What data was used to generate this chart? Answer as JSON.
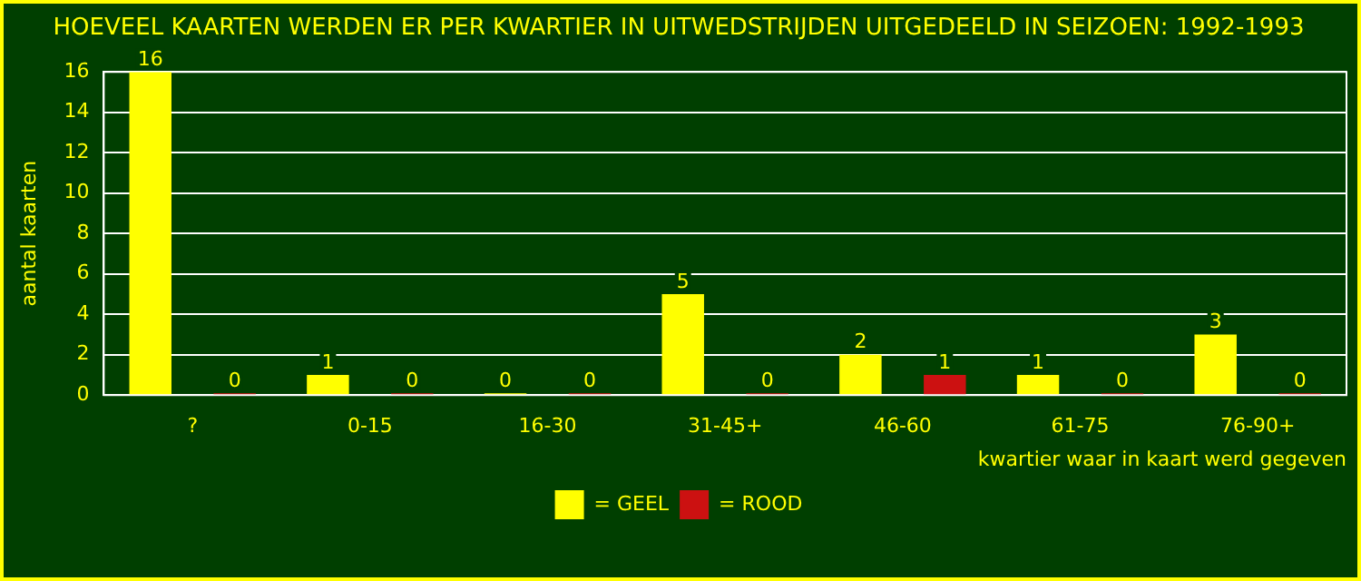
{
  "chart_data": {
    "type": "bar",
    "title": "HOEVEEL KAARTEN WERDEN ER PER KWARTIER IN UITWEDSTRIJDEN UITGEDEELD IN SEIZOEN: 1992-1993",
    "xlabel": "kwartier waar in kaart werd gegeven",
    "ylabel": "aantal kaarten",
    "categories": [
      "?",
      "0-15",
      "16-30",
      "31-45+",
      "46-60",
      "61-75",
      "76-90+"
    ],
    "series": [
      {
        "name": "= GEEL",
        "color": "#ffff00",
        "values": [
          16,
          1,
          0,
          5,
          2,
          1,
          3
        ]
      },
      {
        "name": "= ROOD",
        "color": "#cc1111",
        "values": [
          0,
          0,
          0,
          0,
          1,
          0,
          0
        ]
      }
    ],
    "ylim": [
      0,
      16
    ],
    "yticks": [
      0,
      2,
      4,
      6,
      8,
      10,
      12,
      14,
      16
    ],
    "grid": "y",
    "legend": "bottom",
    "data_labels": true
  }
}
